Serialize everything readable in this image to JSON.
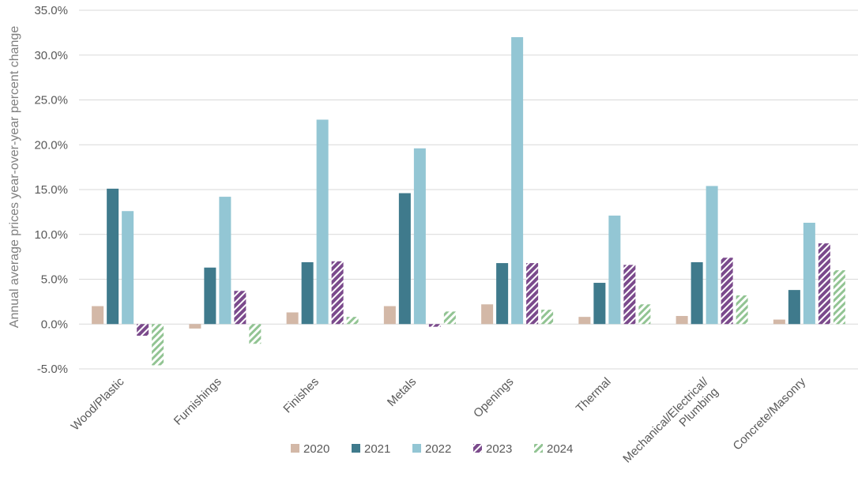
{
  "chart_data": {
    "type": "bar",
    "ylabel": "Annual average prices year-over-year percent change",
    "xlabel": "",
    "ylim": [
      -5,
      35
    ],
    "ytick_step": 5,
    "ytick_format": "{v}%",
    "grid": true,
    "legend_position": "bottom",
    "categories": [
      [
        "Wood/Plastic"
      ],
      [
        "Furnishings"
      ],
      [
        "Finishes"
      ],
      [
        "Metals"
      ],
      [
        "Openings"
      ],
      [
        "Thermal"
      ],
      [
        "Mechanical/Electrical/",
        "Plumbing"
      ],
      [
        "Concrete/Masonry"
      ]
    ],
    "series": [
      {
        "name": "2020",
        "color": "#d3b8a7",
        "pattern": "solid",
        "values": [
          2.0,
          -0.5,
          1.3,
          2.0,
          2.2,
          0.8,
          0.9,
          0.5
        ]
      },
      {
        "name": "2021",
        "color": "#3f7a8c",
        "pattern": "solid",
        "values": [
          15.1,
          6.3,
          6.9,
          14.6,
          6.8,
          4.6,
          6.9,
          3.8
        ]
      },
      {
        "name": "2022",
        "color": "#93c6d4",
        "pattern": "solid",
        "values": [
          12.6,
          14.2,
          22.8,
          19.6,
          32.0,
          12.1,
          15.4,
          11.3
        ]
      },
      {
        "name": "2023",
        "color": "#7b4a8c",
        "pattern": "hatch-dense",
        "values": [
          -1.3,
          3.7,
          7.0,
          -0.3,
          6.8,
          6.6,
          7.4,
          9.0
        ]
      },
      {
        "name": "2024",
        "color": "#92c493",
        "pattern": "hatch-light",
        "values": [
          -4.6,
          -2.2,
          0.8,
          1.4,
          1.6,
          2.2,
          3.2,
          6.0
        ]
      }
    ]
  }
}
